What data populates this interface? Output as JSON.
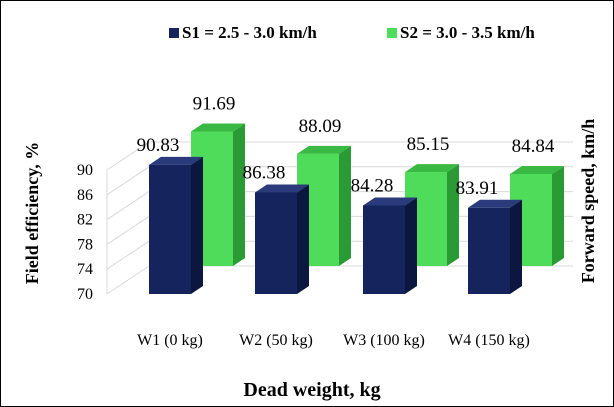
{
  "colors": {
    "s1_front": "#15245c",
    "s1_side": "#0c173f",
    "s1_top": "#2a3a7a",
    "s2_front": "#4fdc5b",
    "s2_side": "#2a9a34",
    "s2_top": "#39b843",
    "grid": "#d9d9d9",
    "text": "#000000"
  },
  "chart_data": {
    "type": "bar",
    "style": "3d-clustered-column",
    "categories": [
      "W1 (0 kg)",
      "W2 (50 kg)",
      "W3 (100 kg)",
      "W4 (150 kg)"
    ],
    "series": [
      {
        "name": "S1 = 2.5 - 3.0 km/h",
        "values": [
          90.83,
          86.38,
          84.28,
          83.91
        ]
      },
      {
        "name": "S2 = 3.0 - 3.5 km/h",
        "values": [
          91.69,
          88.09,
          85.15,
          84.84
        ]
      }
    ],
    "yticks": [
      "70",
      "74",
      "78",
      "82",
      "86",
      "90"
    ],
    "ylim": [
      70,
      94
    ],
    "xlabel": "Dead weight, kg",
    "ylabel": "Field efficiency, %",
    "y2label": "Forward speed, km/h",
    "legend_position": "top",
    "grid": true
  }
}
